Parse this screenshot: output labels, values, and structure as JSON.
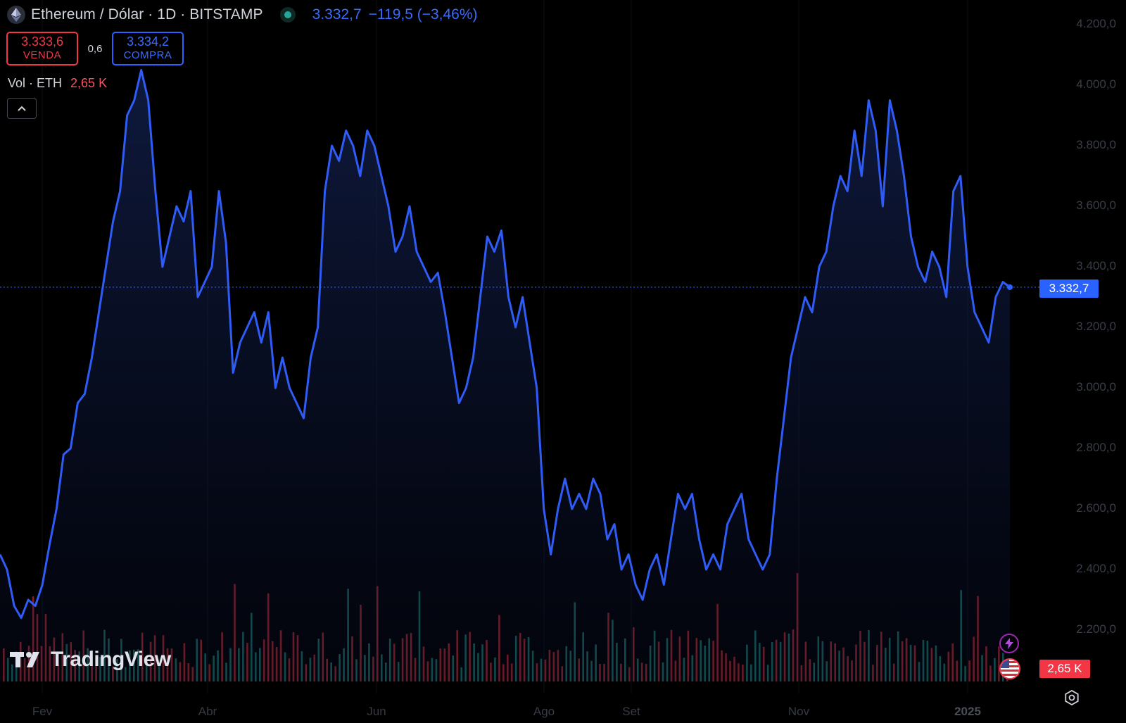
{
  "header": {
    "title": "Ethereum / Dólar · 1D · BITSTAMP",
    "last": "3.332,7",
    "change": "−119,5 (−3,46%)"
  },
  "trade": {
    "sell_price": "3.333,6",
    "sell_label": "VENDA",
    "spread": "0,6",
    "buy_price": "3.334,2",
    "buy_label": "COMPRA"
  },
  "volume_legend": {
    "label": "Vol · ETH",
    "value": "2,65 K"
  },
  "price_axis_labels": [
    "4.200,0",
    "4.000,0",
    "3.800,0",
    "3.600,0",
    "3.400,0",
    "3.200,0",
    "3.000,0",
    "2.800,0",
    "2.600,0",
    "2.400,0",
    "2.200,0"
  ],
  "time_axis_labels": [
    {
      "label": "Fev",
      "bold": false
    },
    {
      "label": "Abr",
      "bold": false
    },
    {
      "label": "Jun",
      "bold": false
    },
    {
      "label": "Ago",
      "bold": false
    },
    {
      "label": "Set",
      "bold": false
    },
    {
      "label": "Nov",
      "bold": false
    },
    {
      "label": "2025",
      "bold": true
    }
  ],
  "price_tag": "3.332,7",
  "volume_tag": "2,65 K",
  "brand": "TradingView",
  "colors": {
    "line": "#2f5cf6",
    "up_volume": "#26a69a",
    "down_volume": "#f23645",
    "price_tag": "#2962ff",
    "volume_tag": "#f23645"
  },
  "icons": {
    "symbol": "ethereum-icon",
    "alert": "lightning-icon",
    "region": "us-flag-icon",
    "settings": "gear-icon"
  },
  "chart_data": {
    "type": "area",
    "x_label_positions_note": "",
    "ylim": [
      2200,
      4200
    ],
    "current_price": 3332.7,
    "series": [
      {
        "values": [
          2450,
          2400,
          2280,
          2240,
          2300,
          2280,
          2350,
          2480,
          2600,
          2780,
          2800,
          2950,
          2980,
          3100,
          3250,
          3400,
          3550,
          3650,
          3900,
          3950,
          4050,
          3950,
          3650,
          3400,
          3500,
          3600,
          3550,
          3650,
          3300,
          3350,
          3400,
          3650,
          3480,
          3050,
          3150,
          3200,
          3250,
          3150,
          3250,
          3000,
          3100,
          3000,
          2950,
          2900,
          3100,
          3200,
          3650,
          3800,
          3750,
          3850,
          3800,
          3700,
          3850,
          3800,
          3700,
          3600,
          3450,
          3500,
          3600,
          3450,
          3400,
          3350,
          3380,
          3250,
          3100,
          2950,
          3000,
          3100,
          3300,
          3500,
          3450,
          3520,
          3300,
          3200,
          3300,
          3150,
          3000,
          2600,
          2450,
          2600,
          2700,
          2600,
          2650,
          2600,
          2700,
          2650,
          2500,
          2550,
          2400,
          2450,
          2350,
          2300,
          2400,
          2450,
          2350,
          2500,
          2650,
          2600,
          2650,
          2500,
          2400,
          2450,
          2400,
          2550,
          2600,
          2650,
          2500,
          2450,
          2400,
          2450,
          2700,
          2900,
          3100,
          3200,
          3300,
          3250,
          3400,
          3450,
          3600,
          3700,
          3650,
          3850,
          3700,
          3950,
          3850,
          3600,
          3950,
          3850,
          3700,
          3500,
          3400,
          3350,
          3450,
          3400,
          3300,
          3650,
          3700,
          3400,
          3250,
          3200,
          3150,
          3300,
          3350,
          3333
        ]
      }
    ],
    "volume_note": "bars shown at bottom in green (up) and red (down)"
  }
}
